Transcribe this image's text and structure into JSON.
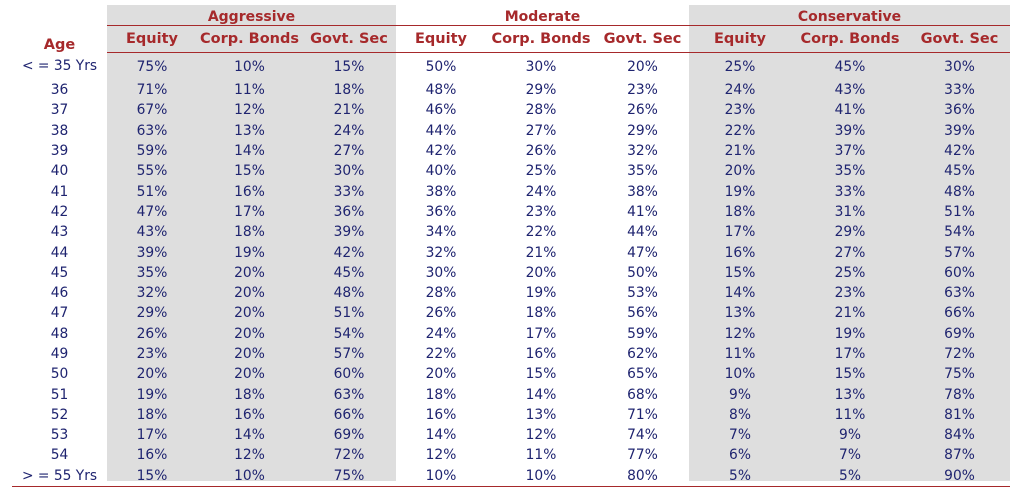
{
  "header": {
    "age_label": "Age",
    "groups": [
      "Aggressive",
      "Moderate",
      "Conservative"
    ],
    "subcolumns": [
      "Equity",
      "Corp. Bonds",
      "Govt. Sec"
    ]
  },
  "rows": [
    {
      "age": "< = 35 Yrs",
      "values": [
        "75%",
        "10%",
        "15%",
        "50%",
        "30%",
        "20%",
        "25%",
        "45%",
        "30%"
      ]
    },
    {
      "age": "36",
      "values": [
        "71%",
        "11%",
        "18%",
        "48%",
        "29%",
        "23%",
        "24%",
        "43%",
        "33%"
      ]
    },
    {
      "age": "37",
      "values": [
        "67%",
        "12%",
        "21%",
        "46%",
        "28%",
        "26%",
        "23%",
        "41%",
        "36%"
      ]
    },
    {
      "age": "38",
      "values": [
        "63%",
        "13%",
        "24%",
        "44%",
        "27%",
        "29%",
        "22%",
        "39%",
        "39%"
      ]
    },
    {
      "age": "39",
      "values": [
        "59%",
        "14%",
        "27%",
        "42%",
        "26%",
        "32%",
        "21%",
        "37%",
        "42%"
      ]
    },
    {
      "age": "40",
      "values": [
        "55%",
        "15%",
        "30%",
        "40%",
        "25%",
        "35%",
        "20%",
        "35%",
        "45%"
      ]
    },
    {
      "age": "41",
      "values": [
        "51%",
        "16%",
        "33%",
        "38%",
        "24%",
        "38%",
        "19%",
        "33%",
        "48%"
      ]
    },
    {
      "age": "42",
      "values": [
        "47%",
        "17%",
        "36%",
        "36%",
        "23%",
        "41%",
        "18%",
        "31%",
        "51%"
      ]
    },
    {
      "age": "43",
      "values": [
        "43%",
        "18%",
        "39%",
        "34%",
        "22%",
        "44%",
        "17%",
        "29%",
        "54%"
      ]
    },
    {
      "age": "44",
      "values": [
        "39%",
        "19%",
        "42%",
        "32%",
        "21%",
        "47%",
        "16%",
        "27%",
        "57%"
      ]
    },
    {
      "age": "45",
      "values": [
        "35%",
        "20%",
        "45%",
        "30%",
        "20%",
        "50%",
        "15%",
        "25%",
        "60%"
      ]
    },
    {
      "age": "46",
      "values": [
        "32%",
        "20%",
        "48%",
        "28%",
        "19%",
        "53%",
        "14%",
        "23%",
        "63%"
      ]
    },
    {
      "age": "47",
      "values": [
        "29%",
        "20%",
        "51%",
        "26%",
        "18%",
        "56%",
        "13%",
        "21%",
        "66%"
      ]
    },
    {
      "age": "48",
      "values": [
        "26%",
        "20%",
        "54%",
        "24%",
        "17%",
        "59%",
        "12%",
        "19%",
        "69%"
      ]
    },
    {
      "age": "49",
      "values": [
        "23%",
        "20%",
        "57%",
        "22%",
        "16%",
        "62%",
        "11%",
        "17%",
        "72%"
      ]
    },
    {
      "age": "50",
      "values": [
        "20%",
        "20%",
        "60%",
        "20%",
        "15%",
        "65%",
        "10%",
        "15%",
        "75%"
      ]
    },
    {
      "age": "51",
      "values": [
        "19%",
        "18%",
        "63%",
        "18%",
        "14%",
        "68%",
        "9%",
        "13%",
        "78%"
      ]
    },
    {
      "age": "52",
      "values": [
        "18%",
        "16%",
        "66%",
        "16%",
        "13%",
        "71%",
        "8%",
        "11%",
        "81%"
      ]
    },
    {
      "age": "53",
      "values": [
        "17%",
        "14%",
        "69%",
        "14%",
        "12%",
        "74%",
        "7%",
        "9%",
        "84%"
      ]
    },
    {
      "age": "54",
      "values": [
        "16%",
        "12%",
        "72%",
        "12%",
        "11%",
        "77%",
        "6%",
        "7%",
        "87%"
      ]
    },
    {
      "age": "> = 55 Yrs",
      "values": [
        "15%",
        "10%",
        "75%",
        "10%",
        "10%",
        "80%",
        "5%",
        "5%",
        "90%"
      ]
    }
  ],
  "colors": {
    "header": "#a6292b",
    "values": "#1f2470",
    "shading": "#dedede"
  }
}
